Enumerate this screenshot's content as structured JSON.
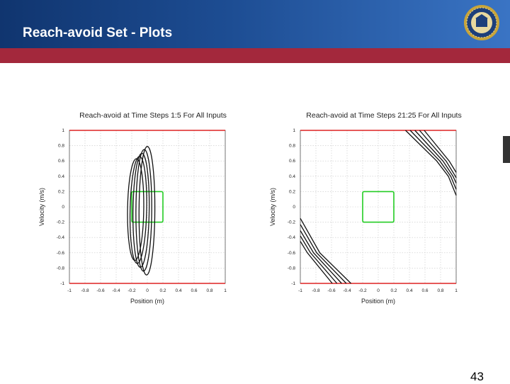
{
  "slide": {
    "title": "Reach-avoid Set - Plots",
    "page_number": "43",
    "colors": {
      "header": "#1d4d93",
      "stripe": "#a3283c",
      "avoid_lines": "#dd2222",
      "target": "#22cc22"
    },
    "seal_icon": "uc-berkeley-seal"
  },
  "chart_data": [
    {
      "type": "line",
      "title": "Reach-avoid at Time Steps 1:5 For All Inputs",
      "xlabel": "Position (m)",
      "ylabel": "Velocity (m/s)",
      "xlim": [
        -1,
        1
      ],
      "ylim": [
        -1,
        1
      ],
      "xticks": [
        "-1",
        "-0.8",
        "-0.6",
        "-0.4",
        "-0.2",
        "0",
        "0.2",
        "0.4",
        "0.6",
        "0.8",
        "1"
      ],
      "yticks": [
        "1",
        "0.8",
        "0.6",
        "0.4",
        "0.2",
        "0",
        "-0.2",
        "-0.4",
        "-0.6",
        "-0.8",
        "-1"
      ],
      "grid": true,
      "avoid_lines_y": [
        1,
        -1
      ],
      "target_set": {
        "x": [
          -0.2,
          0.2
        ],
        "y": [
          -0.2,
          0.2
        ]
      },
      "series": [
        {
          "values": [
            [
              -0.14,
              0.63
            ],
            [
              -0.16,
              -0.7
            ]
          ]
        },
        {
          "values": [
            [
              -0.1,
              0.66
            ],
            [
              -0.13,
              -0.74
            ]
          ]
        },
        {
          "values": [
            [
              -0.07,
              0.7
            ],
            [
              -0.09,
              -0.79
            ]
          ]
        },
        {
          "values": [
            [
              -0.04,
              0.75
            ],
            [
              -0.05,
              -0.84
            ]
          ]
        },
        {
          "values": [
            [
              0.0,
              0.79
            ],
            [
              -0.01,
              -0.89
            ]
          ]
        }
      ]
    },
    {
      "type": "line",
      "title": "Reach-avoid at Time Steps 21:25 For All Inputs",
      "xlabel": "Position (m)",
      "ylabel": "Velocity (m/s)",
      "xlim": [
        -1,
        1
      ],
      "ylim": [
        -1,
        1
      ],
      "xticks": [
        "-1",
        "-0.8",
        "-0.6",
        "-0.4",
        "-0.2",
        "0",
        "0.2",
        "0.4",
        "0.6",
        "0.8",
        "1"
      ],
      "yticks": [
        "1",
        "0.8",
        "0.6",
        "0.4",
        "0.2",
        "0",
        "-0.2",
        "-0.4",
        "-0.6",
        "-0.8",
        "-1"
      ],
      "grid": true,
      "avoid_lines_y": [
        1,
        -1
      ],
      "target_set": {
        "x": [
          -0.2,
          0.2
        ],
        "y": [
          -0.2,
          0.2
        ]
      },
      "series": [
        {
          "values": [
            [
              0.35,
              1.0
            ],
            [
              0.75,
              0.6
            ],
            [
              0.9,
              0.4
            ],
            [
              1.0,
              0.15
            ]
          ]
        },
        {
          "values": [
            [
              0.41,
              1.0
            ],
            [
              0.79,
              0.6
            ],
            [
              0.93,
              0.4
            ],
            [
              1.0,
              0.23
            ]
          ]
        },
        {
          "values": [
            [
              0.47,
              1.0
            ],
            [
              0.83,
              0.6
            ],
            [
              0.96,
              0.4
            ],
            [
              1.0,
              0.31
            ]
          ]
        },
        {
          "values": [
            [
              0.53,
              1.0
            ],
            [
              0.87,
              0.6
            ],
            [
              0.99,
              0.4
            ],
            [
              1.0,
              0.38
            ]
          ]
        },
        {
          "values": [
            [
              0.59,
              1.0
            ],
            [
              0.91,
              0.6
            ],
            [
              1.0,
              0.45
            ]
          ]
        },
        {
          "values": [
            [
              -1.0,
              -0.15
            ],
            [
              -0.75,
              -0.6
            ],
            [
              -0.35,
              -1.0
            ]
          ]
        },
        {
          "values": [
            [
              -1.0,
              -0.23
            ],
            [
              -0.79,
              -0.6
            ],
            [
              -0.41,
              -1.0
            ]
          ]
        },
        {
          "values": [
            [
              -1.0,
              -0.31
            ],
            [
              -0.83,
              -0.6
            ],
            [
              -0.47,
              -1.0
            ]
          ]
        },
        {
          "values": [
            [
              -1.0,
              -0.38
            ],
            [
              -0.87,
              -0.6
            ],
            [
              -0.53,
              -1.0
            ]
          ]
        },
        {
          "values": [
            [
              -1.0,
              -0.45
            ],
            [
              -0.91,
              -0.6
            ],
            [
              -0.59,
              -1.0
            ]
          ]
        }
      ]
    }
  ]
}
